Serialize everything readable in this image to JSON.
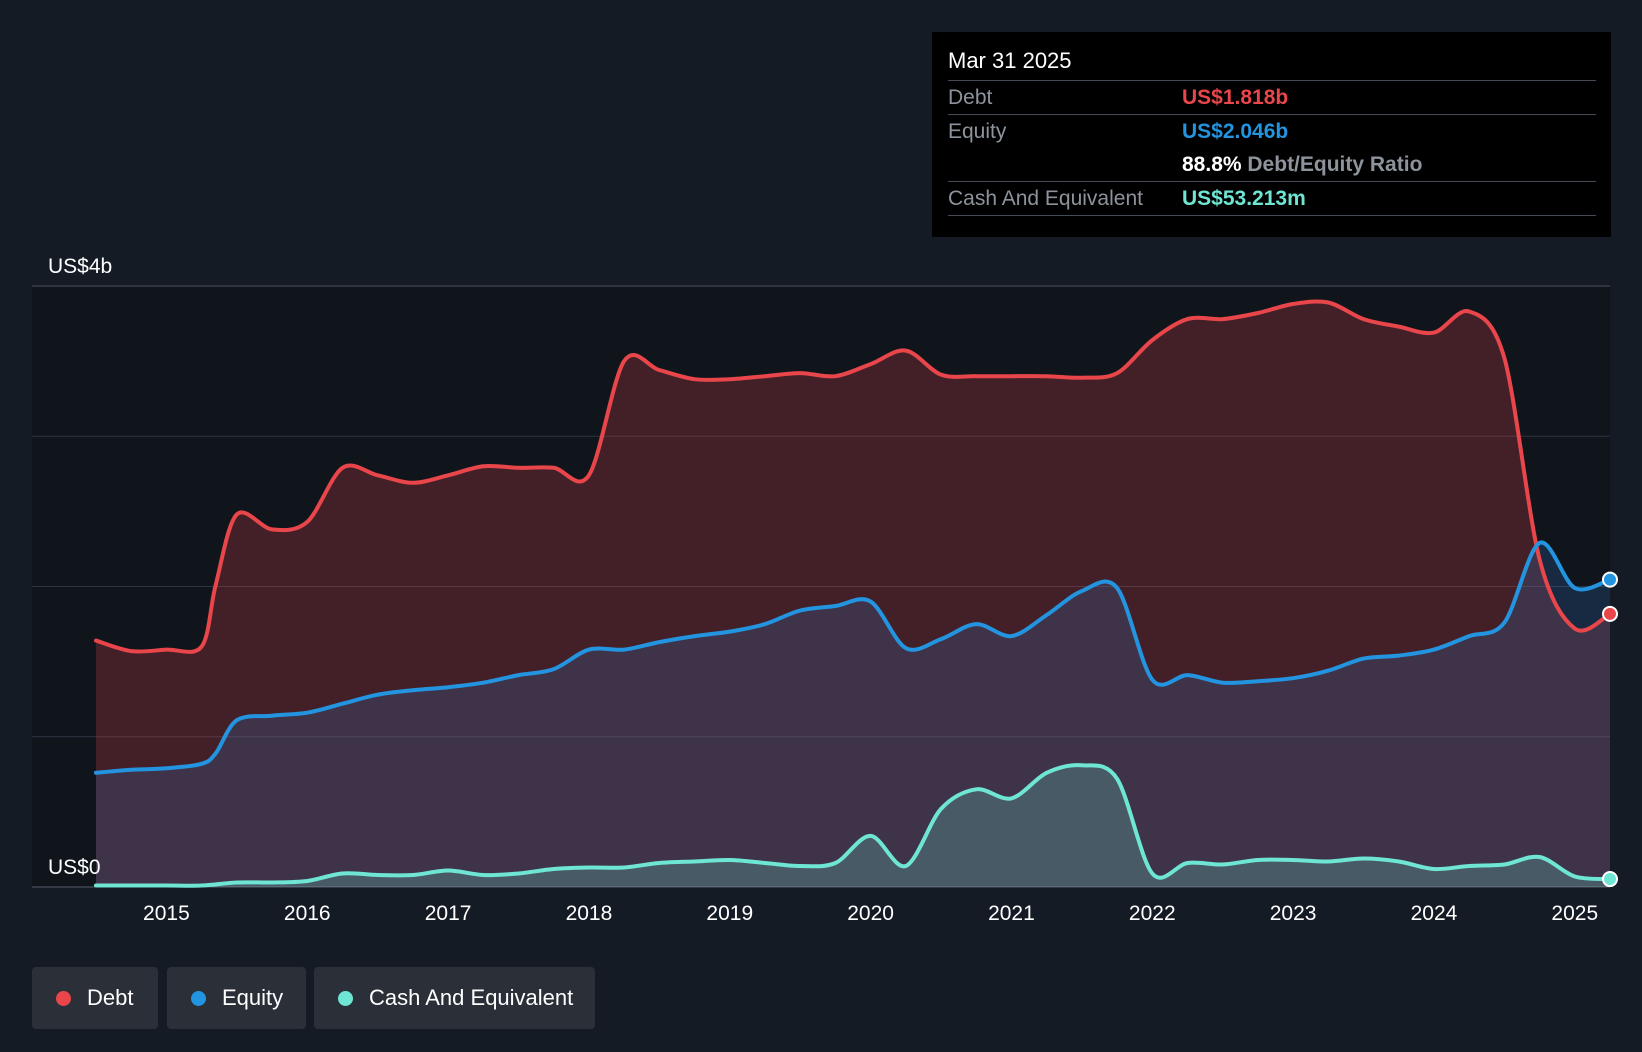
{
  "tooltip": {
    "date": "Mar 31 2025",
    "debt_label": "Debt",
    "debt_value": "US$1.818b",
    "equity_label": "Equity",
    "equity_value": "US$2.046b",
    "ratio_value": "88.8%",
    "ratio_label": "Debt/Equity Ratio",
    "cash_label": "Cash And Equivalent",
    "cash_value": "US$53.213m"
  },
  "legend": {
    "debt": "Debt",
    "equity": "Equity",
    "cash": "Cash And Equivalent"
  },
  "colors": {
    "background": "#151b24",
    "debt": "#e8464a",
    "equity": "#2394df",
    "cash": "#6ee6d3"
  },
  "chart_data": {
    "type": "area",
    "title": "",
    "xlabel": "",
    "ylabel": "",
    "ylim": [
      0,
      4
    ],
    "y_unit": "US$ billions",
    "y_tick_labels": [
      "US$0",
      "US$4b"
    ],
    "y_gridlines": [
      0,
      1,
      2,
      3,
      4
    ],
    "xlim": [
      2014.5,
      2025.25
    ],
    "x_tick_labels": [
      "2015",
      "2016",
      "2017",
      "2018",
      "2019",
      "2020",
      "2021",
      "2022",
      "2023",
      "2024",
      "2025"
    ],
    "x_ticks": [
      2015,
      2016,
      2017,
      2018,
      2019,
      2020,
      2021,
      2022,
      2023,
      2024,
      2025
    ],
    "series": [
      {
        "name": "Debt",
        "x": [
          2014.5,
          2014.75,
          2015.0,
          2015.25,
          2015.35,
          2015.5,
          2015.75,
          2016.0,
          2016.25,
          2016.5,
          2016.75,
          2017.0,
          2017.25,
          2017.5,
          2017.75,
          2018.0,
          2018.25,
          2018.5,
          2018.75,
          2019.0,
          2019.25,
          2019.5,
          2019.75,
          2020.0,
          2020.25,
          2020.5,
          2020.75,
          2021.0,
          2021.25,
          2021.5,
          2021.75,
          2022.0,
          2022.25,
          2022.5,
          2022.75,
          2023.0,
          2023.25,
          2023.5,
          2023.75,
          2024.0,
          2024.25,
          2024.5,
          2024.75,
          2025.0,
          2025.25
        ],
        "values": [
          1.64,
          1.57,
          1.58,
          1.6,
          2.01,
          2.48,
          2.38,
          2.43,
          2.79,
          2.74,
          2.69,
          2.74,
          2.8,
          2.79,
          2.79,
          2.74,
          3.5,
          3.44,
          3.38,
          3.38,
          3.4,
          3.42,
          3.4,
          3.48,
          3.57,
          3.41,
          3.4,
          3.4,
          3.4,
          3.39,
          3.42,
          3.64,
          3.78,
          3.78,
          3.82,
          3.88,
          3.89,
          3.78,
          3.73,
          3.69,
          3.83,
          3.52,
          2.18,
          1.72,
          1.818
        ]
      },
      {
        "name": "Equity",
        "x": [
          2014.5,
          2014.75,
          2015.0,
          2015.25,
          2015.35,
          2015.5,
          2015.75,
          2016.0,
          2016.25,
          2016.5,
          2016.75,
          2017.0,
          2017.25,
          2017.5,
          2017.75,
          2018.0,
          2018.25,
          2018.5,
          2018.75,
          2019.0,
          2019.25,
          2019.5,
          2019.75,
          2020.0,
          2020.25,
          2020.5,
          2020.75,
          2021.0,
          2021.25,
          2021.5,
          2021.75,
          2022.0,
          2022.25,
          2022.5,
          2022.75,
          2023.0,
          2023.25,
          2023.5,
          2023.75,
          2024.0,
          2024.25,
          2024.5,
          2024.75,
          2025.0,
          2025.25
        ],
        "values": [
          0.76,
          0.78,
          0.79,
          0.82,
          0.89,
          1.11,
          1.14,
          1.16,
          1.22,
          1.28,
          1.31,
          1.33,
          1.36,
          1.41,
          1.45,
          1.58,
          1.58,
          1.63,
          1.67,
          1.7,
          1.75,
          1.84,
          1.87,
          1.9,
          1.59,
          1.65,
          1.75,
          1.67,
          1.81,
          1.97,
          1.99,
          1.38,
          1.41,
          1.36,
          1.37,
          1.39,
          1.44,
          1.52,
          1.54,
          1.58,
          1.67,
          1.76,
          2.29,
          1.99,
          2.046
        ]
      },
      {
        "name": "Cash And Equivalent",
        "x": [
          2014.5,
          2014.75,
          2015.0,
          2015.25,
          2015.5,
          2015.75,
          2016.0,
          2016.25,
          2016.5,
          2016.75,
          2017.0,
          2017.25,
          2017.5,
          2017.75,
          2018.0,
          2018.25,
          2018.5,
          2018.75,
          2019.0,
          2019.25,
          2019.5,
          2019.75,
          2020.0,
          2020.25,
          2020.5,
          2020.75,
          2021.0,
          2021.25,
          2021.5,
          2021.75,
          2022.0,
          2022.25,
          2022.5,
          2022.75,
          2023.0,
          2023.25,
          2023.5,
          2023.75,
          2024.0,
          2024.25,
          2024.5,
          2024.75,
          2025.0,
          2025.25
        ],
        "values": [
          0.01,
          0.01,
          0.01,
          0.01,
          0.03,
          0.03,
          0.04,
          0.09,
          0.08,
          0.08,
          0.11,
          0.08,
          0.09,
          0.12,
          0.13,
          0.13,
          0.16,
          0.17,
          0.18,
          0.16,
          0.14,
          0.16,
          0.34,
          0.14,
          0.52,
          0.65,
          0.59,
          0.76,
          0.81,
          0.72,
          0.09,
          0.16,
          0.15,
          0.18,
          0.18,
          0.17,
          0.19,
          0.17,
          0.12,
          0.14,
          0.15,
          0.2,
          0.07,
          0.053
        ]
      }
    ],
    "legend_position": "bottom-left",
    "grid": true
  }
}
